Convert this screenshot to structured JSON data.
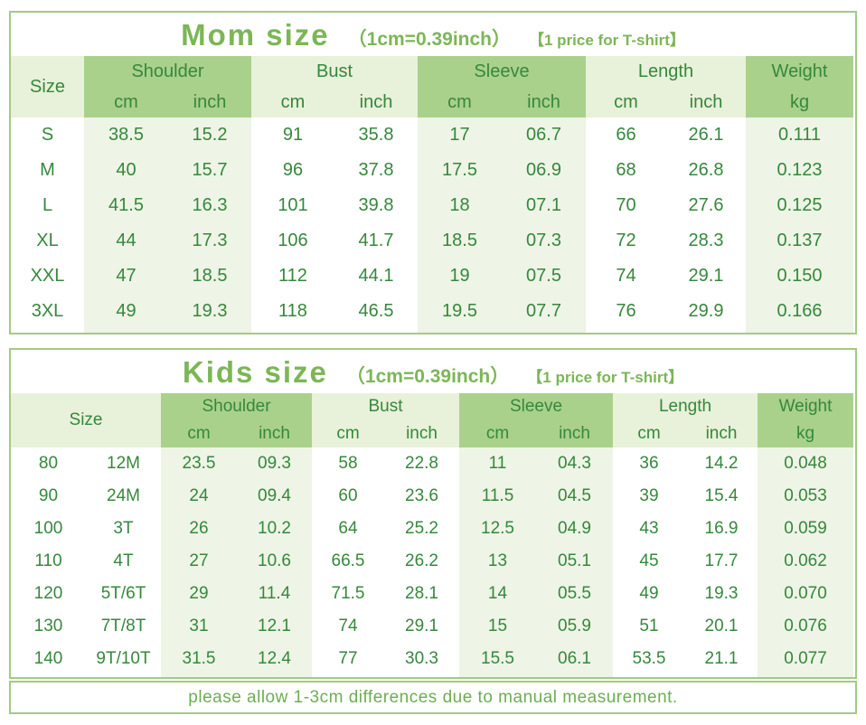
{
  "colors": {
    "dark_green": "#a9d18c",
    "light_green": "#e8f1d9",
    "stripe_green": "#eef4e6",
    "text_green": "#35883c",
    "title_green": "#7cb656",
    "border_green": "#a3ca84",
    "footer_green": "#6cae52"
  },
  "tables": [
    {
      "title": "Mom size",
      "subtitle": "（1cm=0.39inch）",
      "note": "【1 price for T-shirt】",
      "size_label": "Size",
      "groups": [
        {
          "label": "Shoulder",
          "units": [
            "cm",
            "inch"
          ]
        },
        {
          "label": "Bust",
          "units": [
            "cm",
            "inch"
          ]
        },
        {
          "label": "Sleeve",
          "units": [
            "cm",
            "inch"
          ]
        },
        {
          "label": "Length",
          "units": [
            "cm",
            "inch"
          ]
        }
      ],
      "weight_label": "Weight",
      "weight_unit": "kg",
      "rows": [
        [
          "S",
          "38.5",
          "15.2",
          "91",
          "35.8",
          "17",
          "06.7",
          "66",
          "26.1",
          "0.111"
        ],
        [
          "M",
          "40",
          "15.7",
          "96",
          "37.8",
          "17.5",
          "06.9",
          "68",
          "26.8",
          "0.123"
        ],
        [
          "L",
          "41.5",
          "16.3",
          "101",
          "39.8",
          "18",
          "07.1",
          "70",
          "27.6",
          "0.125"
        ],
        [
          "XL",
          "44",
          "17.3",
          "106",
          "41.7",
          "18.5",
          "07.3",
          "72",
          "28.3",
          "0.137"
        ],
        [
          "XXL",
          "47",
          "18.5",
          "112",
          "44.1",
          "19",
          "07.5",
          "74",
          "29.1",
          "0.150"
        ],
        [
          "3XL",
          "49",
          "19.3",
          "118",
          "46.5",
          "19.5",
          "07.7",
          "76",
          "29.9",
          "0.166"
        ]
      ]
    },
    {
      "title": "Kids size",
      "subtitle": "（1cm=0.39inch）",
      "note": "【1 price for T-shirt】",
      "size_label": "Size",
      "groups": [
        {
          "label": "Shoulder",
          "units": [
            "cm",
            "inch"
          ]
        },
        {
          "label": "Bust",
          "units": [
            "cm",
            "inch"
          ]
        },
        {
          "label": "Sleeve",
          "units": [
            "cm",
            "inch"
          ]
        },
        {
          "label": "Length",
          "units": [
            "cm",
            "inch"
          ]
        }
      ],
      "weight_label": "Weight",
      "weight_unit": "kg",
      "rows": [
        [
          "80",
          "12M",
          "23.5",
          "09.3",
          "58",
          "22.8",
          "11",
          "04.3",
          "36",
          "14.2",
          "0.048"
        ],
        [
          "90",
          "24M",
          "24",
          "09.4",
          "60",
          "23.6",
          "11.5",
          "04.5",
          "39",
          "15.4",
          "0.053"
        ],
        [
          "100",
          "3T",
          "26",
          "10.2",
          "64",
          "25.2",
          "12.5",
          "04.9",
          "43",
          "16.9",
          "0.059"
        ],
        [
          "110",
          "4T",
          "27",
          "10.6",
          "66.5",
          "26.2",
          "13",
          "05.1",
          "45",
          "17.7",
          "0.062"
        ],
        [
          "120",
          "5T/6T",
          "29",
          "11.4",
          "71.5",
          "28.1",
          "14",
          "05.5",
          "49",
          "19.3",
          "0.070"
        ],
        [
          "130",
          "7T/8T",
          "31",
          "12.1",
          "74",
          "29.1",
          "15",
          "05.9",
          "51",
          "20.1",
          "0.076"
        ],
        [
          "140",
          "9T/10T",
          "31.5",
          "12.4",
          "77",
          "30.3",
          "15.5",
          "06.1",
          "53.5",
          "21.1",
          "0.077"
        ]
      ]
    }
  ],
  "footer": {
    "text": "please allow 1-3cm differences due to manual measurement."
  }
}
